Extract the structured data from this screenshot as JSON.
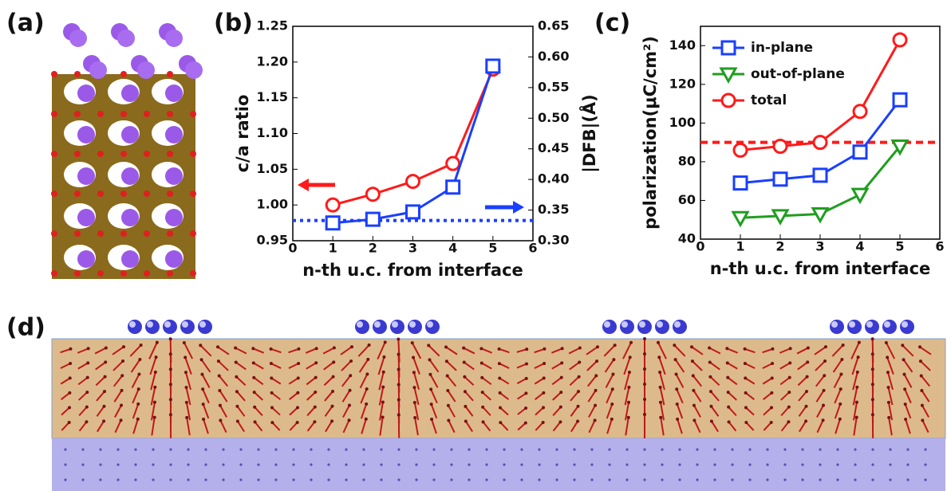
{
  "panel_labels": [
    "(a)",
    "(b)",
    "(c)",
    "(d)"
  ],
  "chart_data": [
    {
      "type": "line",
      "x": [
        1,
        2,
        3,
        4,
        5
      ],
      "xlabel": "n-th u.c. from interface",
      "ylabel": "c/a ratio",
      "y2label": "|DFB|(Å)",
      "xlim": [
        0,
        6
      ],
      "xticks": [
        0,
        1,
        2,
        3,
        4,
        5,
        6
      ],
      "ylim": [
        0.95,
        1.25
      ],
      "yticks": [
        0.95,
        {
          "value": 1,
          "label": "1.00"
        },
        1.05,
        {
          "value": 1.1,
          "label": "1.10"
        },
        1.15,
        {
          "value": 1.2,
          "label": "1.20"
        },
        1.25
      ],
      "y2lim": [
        0.3,
        0.65
      ],
      "y2ticks": [
        {
          "value": 0.3,
          "label": "0.30"
        },
        0.35,
        {
          "value": 0.4,
          "label": "0.40"
        },
        0.45,
        {
          "value": 0.5,
          "label": "0.50"
        },
        0.55,
        {
          "value": 0.6,
          "label": "0.60"
        },
        0.65
      ],
      "series": [
        {
          "color": "#ff1a1a",
          "marker": "circle",
          "values": [
            1.0,
            1.015,
            1.033,
            1.058,
            1.19
          ]
        },
        {
          "color": "#1a3fff",
          "marker": "square",
          "axis": "y2",
          "values": [
            0.329,
            0.335,
            0.347,
            0.3875,
            0.585
          ]
        }
      ],
      "reference_line": {
        "value": 0.333,
        "axis": "y2",
        "color": "#1a3fff",
        "dash": "4,5"
      }
    },
    {
      "type": "line",
      "x": [
        1,
        2,
        3,
        4,
        5
      ],
      "xlabel": "n-th u.c. from interface",
      "ylabel": "polarization(μC/cm²)",
      "xlim": [
        0,
        6
      ],
      "xticks": [
        0,
        1,
        2,
        3,
        4,
        5,
        6
      ],
      "ylim": [
        40,
        150
      ],
      "yticks": [
        40,
        60,
        80,
        100,
        120,
        140
      ],
      "legend": "upper left",
      "series": [
        {
          "name": "in-plane",
          "color": "#1a3fff",
          "marker": "square",
          "values": [
            69,
            71,
            73,
            85,
            112
          ]
        },
        {
          "name": "out-of-plane",
          "color": "#1f9e1f",
          "marker": "triangle-down",
          "values": [
            51,
            52,
            53,
            63,
            88
          ]
        },
        {
          "name": "total",
          "color": "#ff1a1a",
          "marker": "circle",
          "values": [
            86,
            88,
            90,
            106,
            143
          ]
        }
      ],
      "reference_line": {
        "value": 90,
        "color": "#ff1a1a",
        "dash": "9,6"
      }
    }
  ]
}
